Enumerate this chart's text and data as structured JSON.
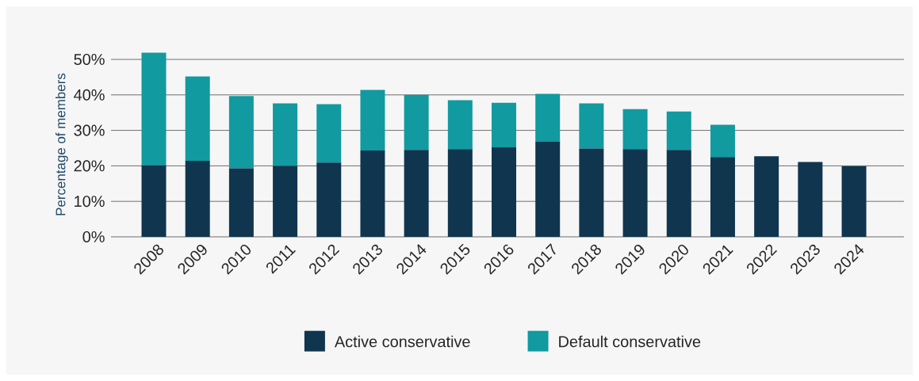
{
  "chart_data": {
    "type": "bar",
    "stacked": true,
    "ylabel": "Percentage of members",
    "categories": [
      "2008",
      "2009",
      "2010",
      "2011",
      "2012",
      "2013",
      "2014",
      "2015",
      "2016",
      "2017",
      "2018",
      "2019",
      "2020",
      "2021",
      "2022",
      "2023",
      "2024"
    ],
    "series": [
      {
        "name": "Active conservative",
        "color": "#10354f",
        "values": [
          20.2,
          21.4,
          19.3,
          20.0,
          20.9,
          24.3,
          24.5,
          24.7,
          25.2,
          26.9,
          24.9,
          24.7,
          24.5,
          22.5,
          22.7,
          21.1,
          19.9
        ]
      },
      {
        "name": "Default conservative",
        "color": "#119aa0",
        "values": [
          31.7,
          23.8,
          20.4,
          17.6,
          16.5,
          17.1,
          15.5,
          13.8,
          12.6,
          13.4,
          12.7,
          11.3,
          10.8,
          9.1,
          null,
          null,
          null
        ]
      }
    ],
    "ylim": [
      0,
      52
    ],
    "yticks": [
      {
        "value": 0,
        "label": "0%"
      },
      {
        "value": 10,
        "label": "10%"
      },
      {
        "value": 20,
        "label": "20%"
      },
      {
        "value": 30,
        "label": "30%"
      },
      {
        "value": 40,
        "label": "40%"
      },
      {
        "value": 50,
        "label": "50%"
      }
    ],
    "grid": "y",
    "legend": "bottom"
  }
}
